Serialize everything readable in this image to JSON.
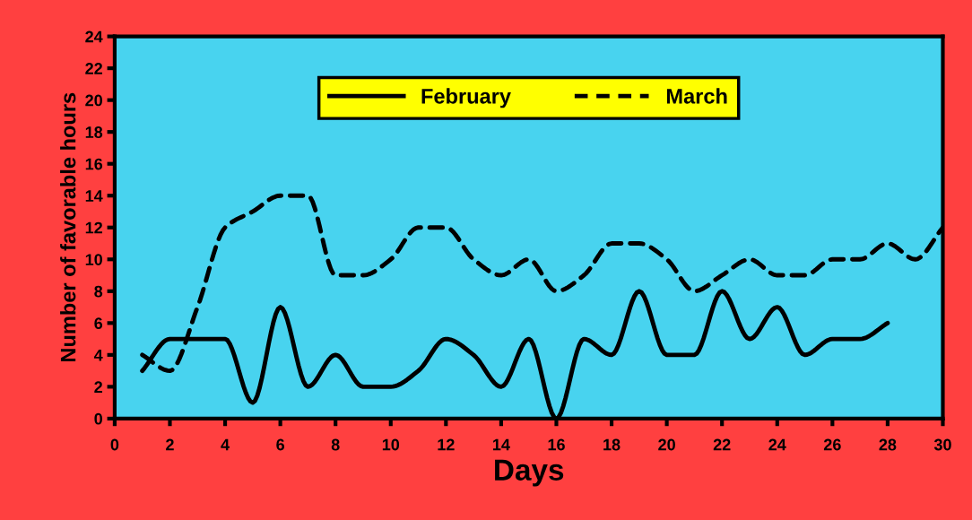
{
  "chart_data": {
    "type": "line",
    "xlabel": "Days",
    "ylabel": "Number of favorable hours",
    "xlim": [
      0,
      30
    ],
    "xticks": [
      0,
      2,
      4,
      6,
      8,
      10,
      12,
      14,
      16,
      18,
      20,
      22,
      24,
      26,
      28,
      30
    ],
    "ylim": [
      0,
      24
    ],
    "yticks": [
      0,
      2,
      4,
      6,
      8,
      10,
      12,
      14,
      16,
      18,
      20,
      22,
      24
    ],
    "grid": false,
    "legend": "top",
    "marker": "none",
    "series": [
      {
        "name": "February",
        "color": "#000000",
        "line_style": "solid",
        "x": [
          1,
          2,
          3,
          4,
          5,
          6,
          7,
          8,
          9,
          10,
          11,
          12,
          13,
          14,
          15,
          16,
          17,
          18,
          19,
          20,
          21,
          22,
          23,
          24,
          25,
          26,
          27,
          28
        ],
        "values": [
          3,
          5,
          5,
          5,
          1,
          7,
          2,
          4,
          2,
          2,
          3,
          5,
          4,
          2,
          5,
          0,
          5,
          4,
          8,
          4,
          4,
          8,
          5,
          7,
          4,
          5,
          5,
          6
        ]
      },
      {
        "name": "March",
        "color": "#000000",
        "line_style": "dashed",
        "x": [
          1,
          2,
          3,
          4,
          5,
          6,
          7,
          8,
          9,
          10,
          11,
          12,
          13,
          14,
          15,
          16,
          17,
          18,
          19,
          20,
          21,
          22,
          23,
          24,
          25,
          26,
          27,
          28,
          29,
          30
        ],
        "values": [
          4,
          3,
          7,
          12,
          13,
          14,
          14,
          9,
          9,
          10,
          12,
          12,
          10,
          9,
          10,
          8,
          9,
          11,
          11,
          10,
          8,
          9,
          10,
          9,
          9,
          10,
          10,
          11,
          10,
          12
        ]
      }
    ]
  }
}
